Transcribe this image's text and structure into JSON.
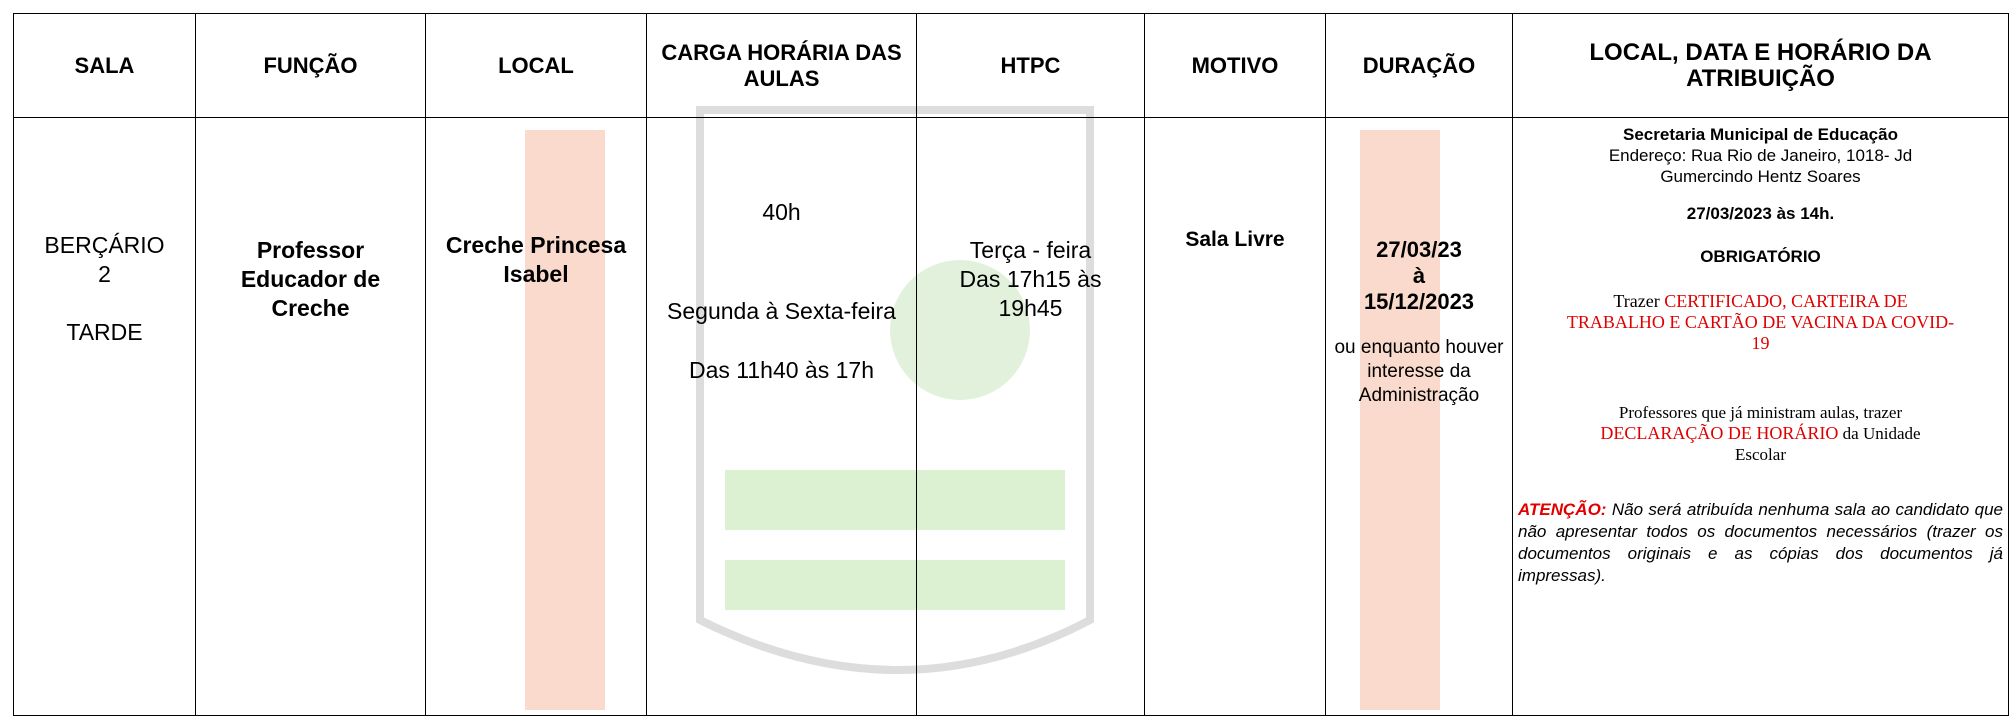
{
  "table": {
    "headers": [
      "SALA",
      "FUNÇÃO",
      "LOCAL",
      "CARGA HORÁRIA DAS AULAS",
      "HTPC",
      "MOTIVO",
      "DURAÇÃO",
      "LOCAL, DATA E HORÁRIO DA ATRIBUIÇÃO"
    ],
    "rows": [
      {
        "sala": [
          "BERÇÁRIO",
          "2",
          "TARDE"
        ],
        "funcao": "Professor Educador de Creche",
        "local": "Creche Princesa Isabel",
        "carga": [
          "40h",
          "Segunda à Sexta-feira",
          "Das 11h40 às 17h"
        ],
        "htpc": [
          "Terça - feira",
          "Das 17h15 às 19h45"
        ],
        "motivo": "Sala Livre",
        "duracao": [
          "27/03/23",
          "à",
          "15/12/2023",
          "ou enquanto houver interesse da Administração"
        ],
        "atribuicao": {
          "orgao": "Secretaria Municipal de Educação",
          "endereco": "Endereço: Rua Rio de Janeiro, 1018- Jd Gumercindo Hentz Soares",
          "data": "27/03/2023  às 14h.",
          "obrigatorio": "OBRIGATÓRIO",
          "trazer": [
            "Trazer ",
            "CERTIFICADO, CARTEIRA DE TRABALHO E CARTÃO DE VACINA DA COVID-19"
          ],
          "professores": [
            "Professores que já ministram aulas, trazer ",
            "DECLARAÇÃO DE HORÁRIO",
            " da Unidade Escolar"
          ],
          "atencao": [
            "ATENÇÃO:",
            " Não será atribuída nenhuma sala ao candidato que não apresentar todos os documentos necessários (trazer os documentos originais e as cópias dos documentos já impressas)."
          ]
        }
      }
    ]
  }
}
